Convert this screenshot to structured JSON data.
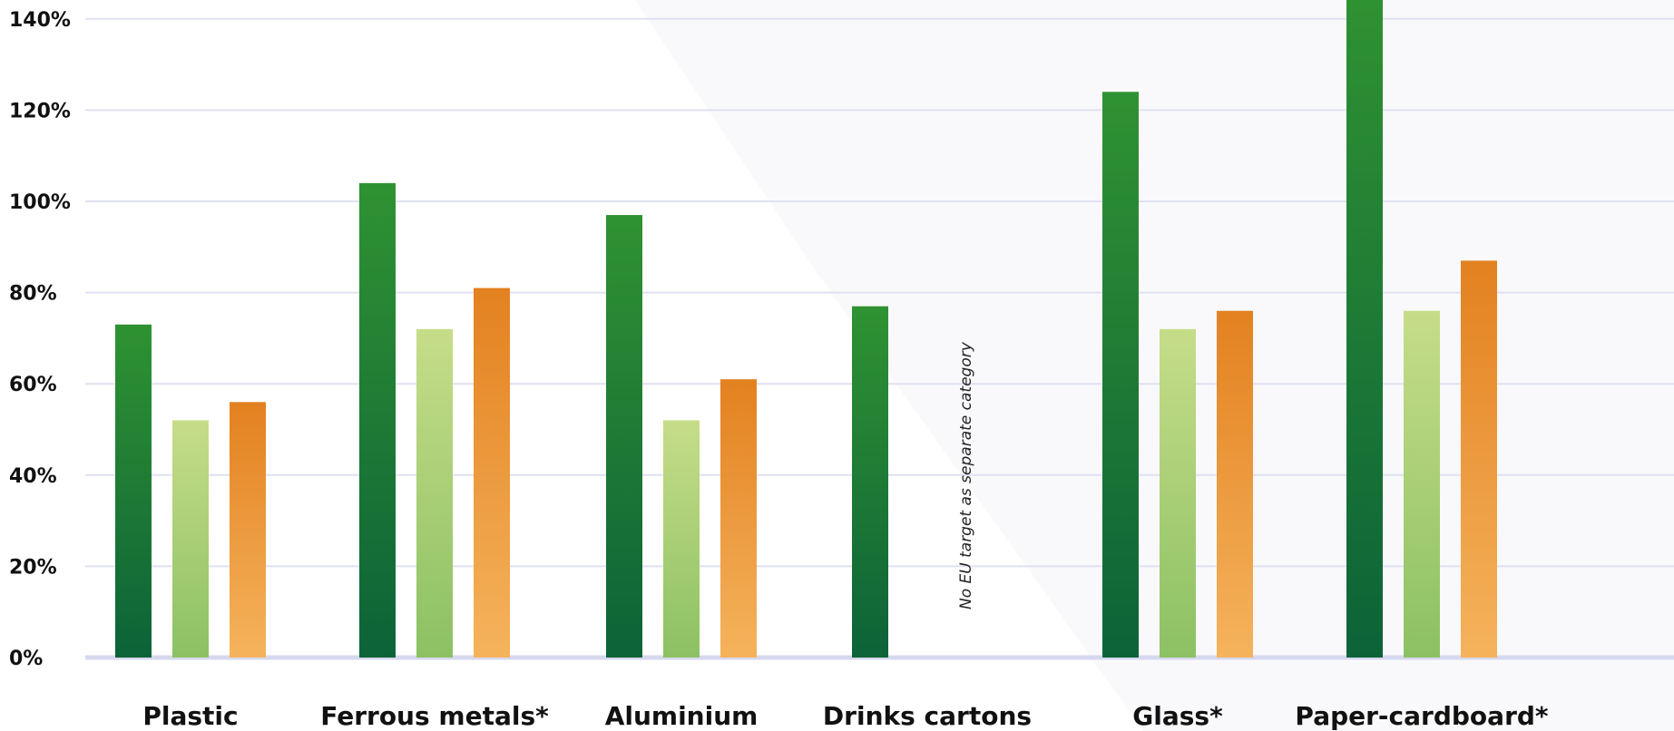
{
  "chart_data": {
    "type": "bar",
    "categories": [
      "Plastic",
      "Ferrous metals*",
      "Aluminium",
      "Drinks cartons",
      "Glass*",
      "Paper-cardboard*"
    ],
    "series": [
      {
        "color_top": "#2f9232",
        "color_bottom": "#0c6338",
        "values": [
          73,
          104,
          97,
          77,
          124,
          146
        ]
      },
      {
        "color_top": "#c6dd88",
        "color_bottom": "#8cc163",
        "values": [
          52,
          72,
          52,
          null,
          72,
          76
        ]
      },
      {
        "color_top": "#e38120",
        "color_bottom": "#f5b35c",
        "values": [
          56,
          81,
          61,
          null,
          76,
          87
        ]
      }
    ],
    "yticks": [
      "0%",
      "20%",
      "40%",
      "60%",
      "80%",
      "100%",
      "120%",
      "140%"
    ],
    "ylim": [
      0,
      140
    ],
    "grid": true,
    "annotation": "No EU target as separate category",
    "annotation_category": "Drinks cartons"
  }
}
